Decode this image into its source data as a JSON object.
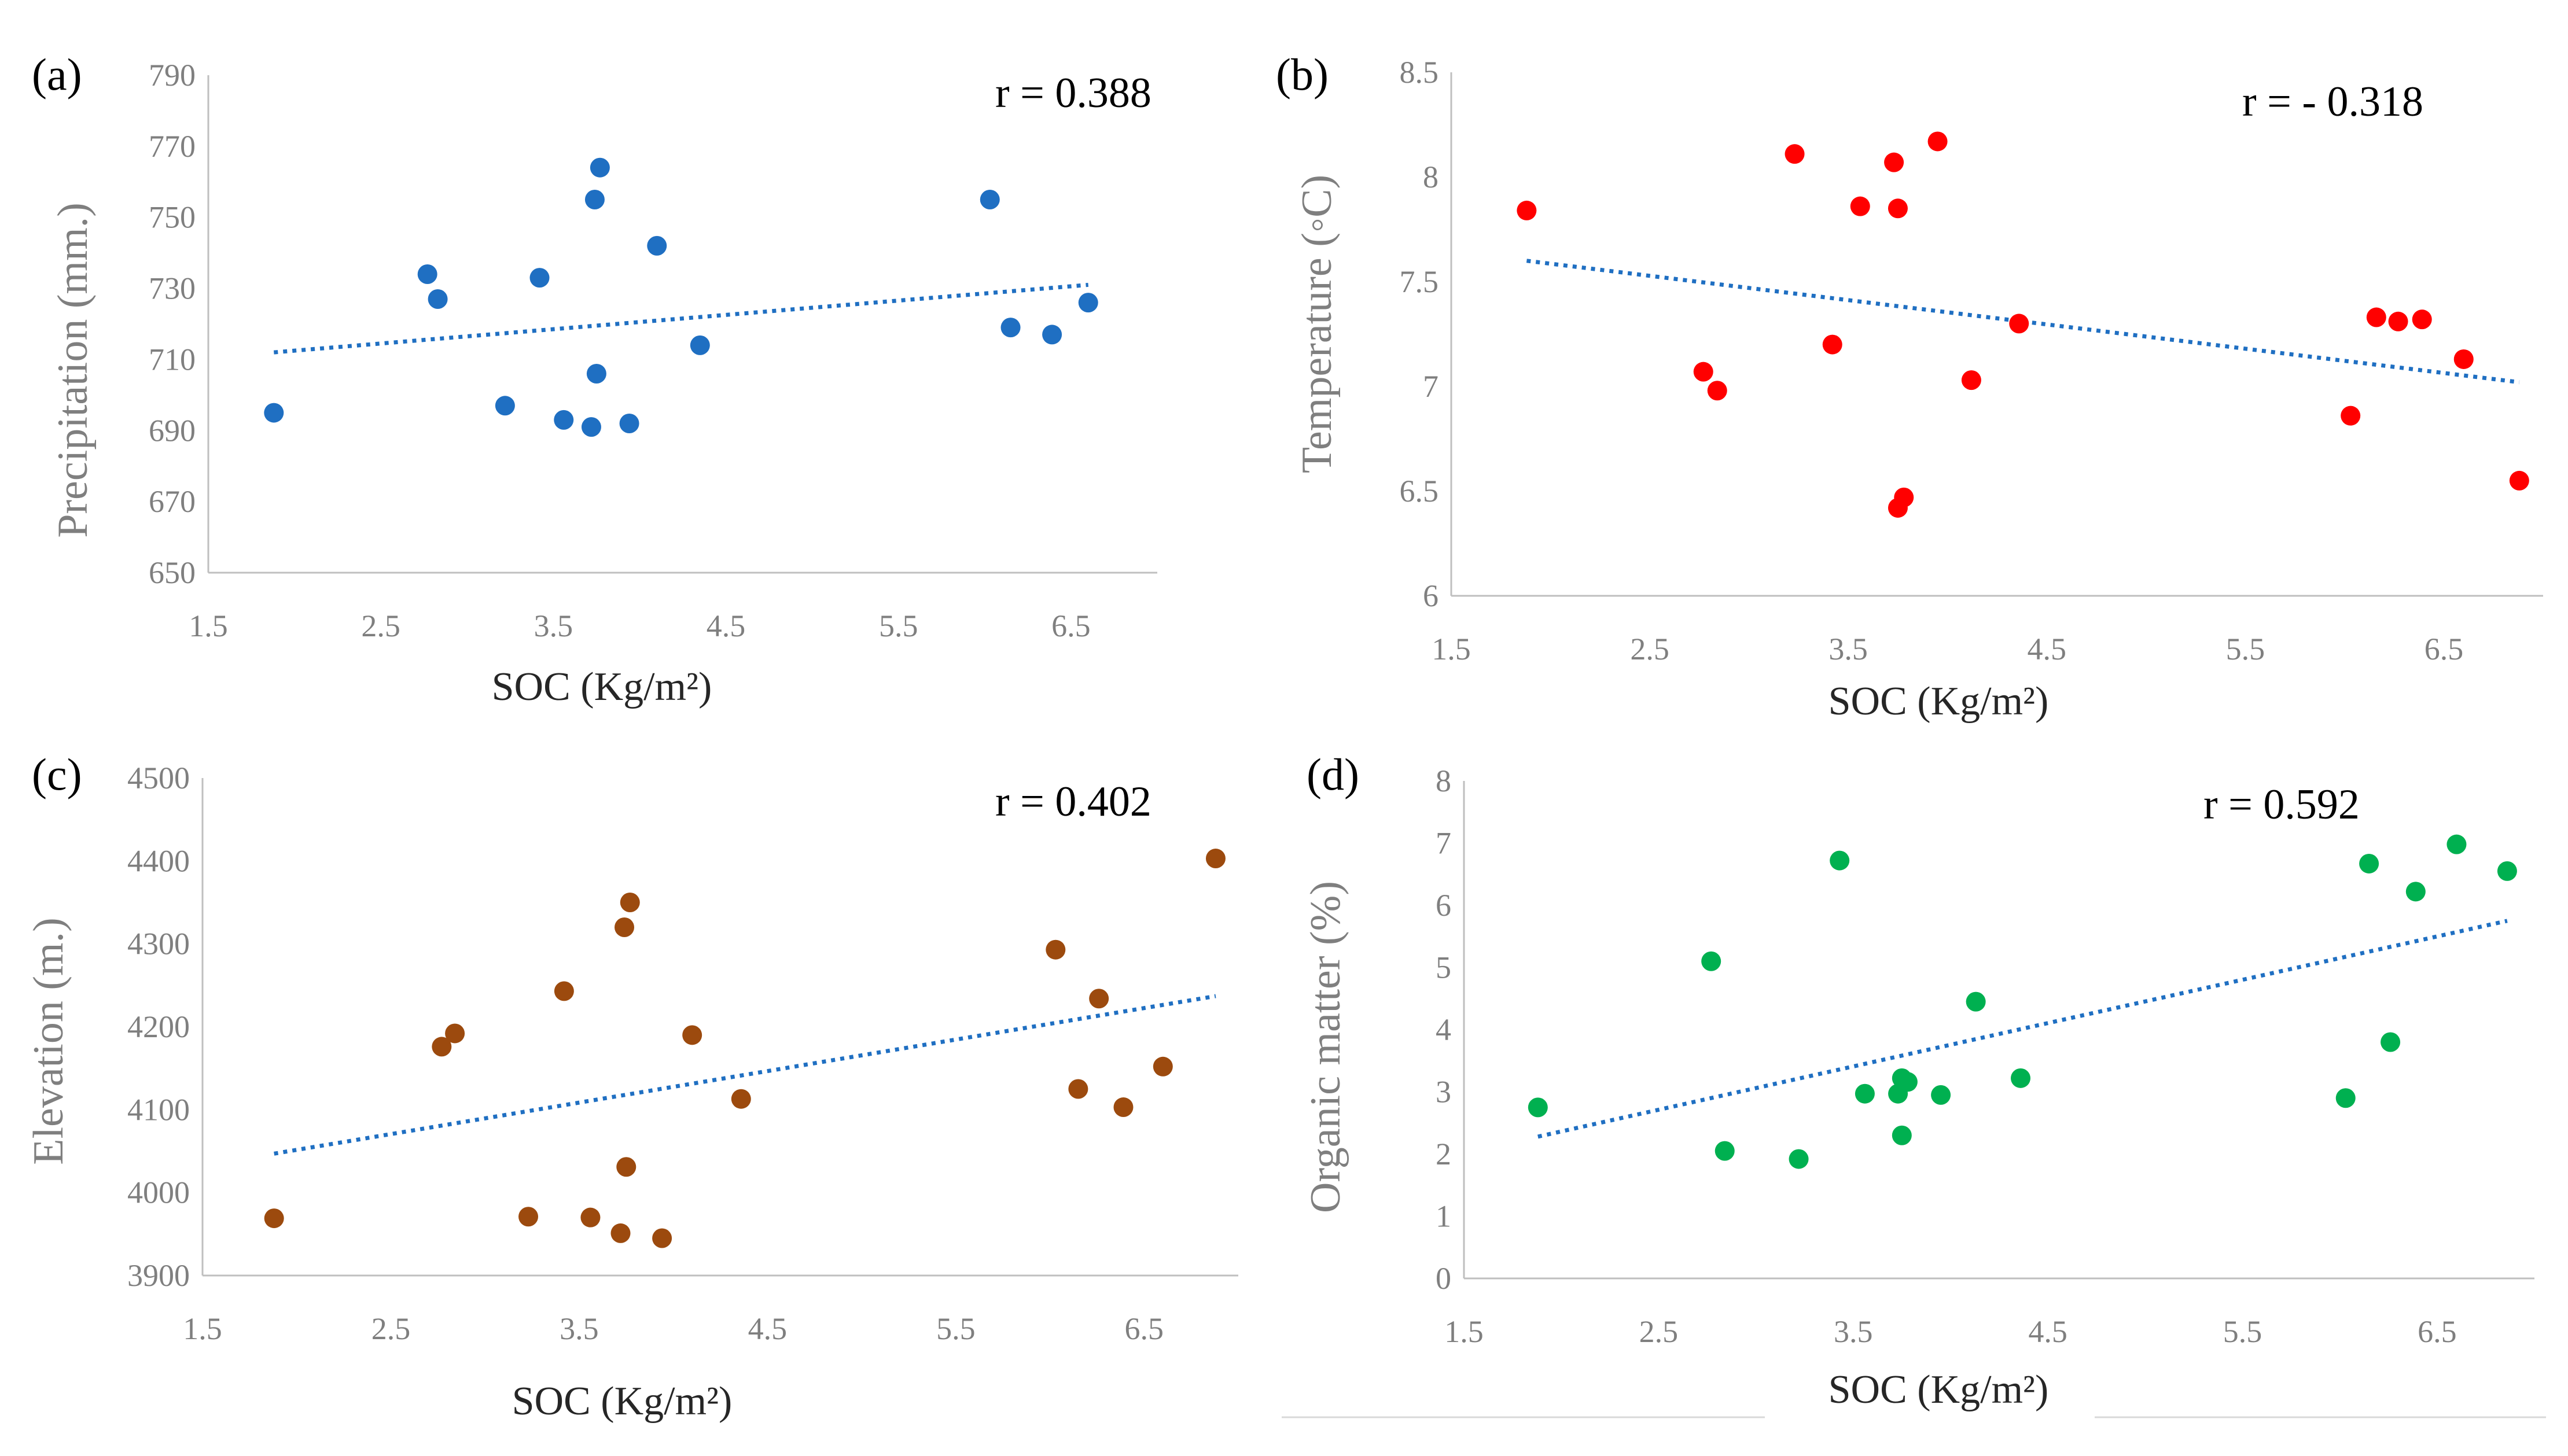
{
  "chart_data": [
    {
      "type": "scatter",
      "panel_label": "(a)",
      "annotation": "r = 0.388",
      "xlabel": "SOC (Kg/m²)",
      "ylabel": "Precipitation (mm.)",
      "xlim": [
        1.5,
        7.0
      ],
      "ylim": [
        650,
        790
      ],
      "xticks": [
        "1.5",
        "2.5",
        "3.5",
        "4.5",
        "5.5",
        "6.5"
      ],
      "yticks": [
        "650",
        "670",
        "690",
        "710",
        "730",
        "750",
        "770",
        "790"
      ],
      "xtick_values": [
        1.5,
        2.5,
        3.5,
        4.5,
        5.5,
        6.5
      ],
      "ytick_values": [
        650,
        670,
        690,
        710,
        730,
        750,
        770,
        790
      ],
      "color": "#1f6fc2",
      "trend_color": "#1f6fc2",
      "trend": {
        "x": [
          1.88,
          6.6
        ],
        "y": [
          712,
          731
        ]
      },
      "x": [
        1.88,
        2.77,
        2.83,
        3.22,
        3.42,
        3.56,
        3.72,
        3.74,
        3.75,
        3.77,
        3.94,
        4.1,
        4.35,
        6.03,
        6.15,
        6.39,
        6.6
      ],
      "y": [
        695,
        734,
        727,
        697,
        733,
        693,
        691,
        755,
        706,
        764,
        692,
        742,
        714,
        755,
        719,
        717,
        726
      ]
    },
    {
      "type": "scatter",
      "panel_label": "(b)",
      "annotation": "r = - 0.318",
      "xlabel": "SOC (Kg/m²)",
      "ylabel": "Temperature (◦C)",
      "xlim": [
        1.5,
        7.0
      ],
      "ylim": [
        6,
        8.5
      ],
      "xticks": [
        "1.5",
        "2.5",
        "3.5",
        "4.5",
        "5.5",
        "6.5"
      ],
      "yticks": [
        "6",
        "6.5",
        "7",
        "7.5",
        "8",
        "8.5"
      ],
      "xtick_values": [
        1.5,
        2.5,
        3.5,
        4.5,
        5.5,
        6.5
      ],
      "ytick_values": [
        6,
        6.5,
        7,
        7.5,
        8,
        8.5
      ],
      "color": "#ff0000",
      "trend_color": "#1f6fc2",
      "trend": {
        "x": [
          1.88,
          6.88
        ],
        "y": [
          7.6,
          7.02
        ]
      },
      "x": [
        1.88,
        2.77,
        2.84,
        3.23,
        3.42,
        3.56,
        3.73,
        3.75,
        3.75,
        3.78,
        3.95,
        4.12,
        4.36,
        6.03,
        6.16,
        6.27,
        6.39,
        6.6,
        6.88
      ],
      "y": [
        7.84,
        7.07,
        6.98,
        8.11,
        7.2,
        7.86,
        8.07,
        7.85,
        6.42,
        6.47,
        8.17,
        7.03,
        7.3,
        6.86,
        7.33,
        7.31,
        7.32,
        7.13,
        6.55
      ]
    },
    {
      "type": "scatter",
      "panel_label": "(c)",
      "annotation": "r = 0.402",
      "xlabel": "SOC (Kg/m²)",
      "ylabel": "Elevation (m.)",
      "xlim": [
        1.5,
        7.0
      ],
      "ylim": [
        3900,
        4500
      ],
      "xticks": [
        "1.5",
        "2.5",
        "3.5",
        "4.5",
        "5.5",
        "6.5"
      ],
      "yticks": [
        "3900",
        "4000",
        "4100",
        "4200",
        "4300",
        "4400",
        "4500"
      ],
      "xtick_values": [
        1.5,
        2.5,
        3.5,
        4.5,
        5.5,
        6.5
      ],
      "ytick_values": [
        3900,
        4000,
        4100,
        4200,
        4300,
        4400,
        4500
      ],
      "color": "#9c4a0e",
      "trend_color": "#1f6fc2",
      "trend": {
        "x": [
          1.88,
          6.88
        ],
        "y": [
          4047,
          4237
        ]
      },
      "x": [
        1.88,
        2.77,
        2.84,
        3.23,
        3.42,
        3.56,
        3.72,
        3.74,
        3.75,
        3.77,
        3.94,
        4.1,
        4.36,
        6.03,
        6.15,
        6.26,
        6.39,
        6.6,
        6.88
      ],
      "y": [
        3969,
        4176,
        4192,
        3971,
        4243,
        3970,
        3951,
        4320,
        4031,
        4350,
        3945,
        4190,
        4113,
        4293,
        4125,
        4234,
        4103,
        4152,
        4403
      ]
    },
    {
      "type": "scatter",
      "panel_label": "(d)",
      "annotation": "r = 0.592",
      "xlabel": "SOC (Kg/m²)",
      "ylabel": "Organic matter (%)",
      "xlim": [
        1.5,
        7.0
      ],
      "ylim": [
        0,
        8
      ],
      "xticks": [
        "1.5",
        "2.5",
        "3.5",
        "4.5",
        "5.5",
        "6.5"
      ],
      "yticks": [
        "0",
        "1",
        "2",
        "3",
        "4",
        "5",
        "6",
        "7",
        "8"
      ],
      "xtick_values": [
        1.5,
        2.5,
        3.5,
        4.5,
        5.5,
        6.5
      ],
      "ytick_values": [
        0,
        1,
        2,
        3,
        4,
        5,
        6,
        7,
        8
      ],
      "color": "#00b050",
      "trend_color": "#1f6fc2",
      "trend": {
        "x": [
          1.88,
          6.86
        ],
        "y": [
          2.28,
          5.75
        ]
      },
      "x": [
        1.88,
        2.77,
        2.84,
        3.22,
        3.43,
        3.56,
        3.73,
        3.75,
        3.75,
        3.78,
        3.95,
        4.13,
        4.36,
        6.03,
        6.15,
        6.26,
        6.39,
        6.6,
        6.86
      ],
      "y": [
        2.75,
        5.1,
        2.05,
        1.92,
        6.72,
        2.97,
        2.97,
        3.22,
        2.3,
        3.16,
        2.95,
        4.45,
        3.22,
        2.9,
        6.67,
        3.8,
        6.22,
        6.98,
        6.55
      ]
    }
  ]
}
